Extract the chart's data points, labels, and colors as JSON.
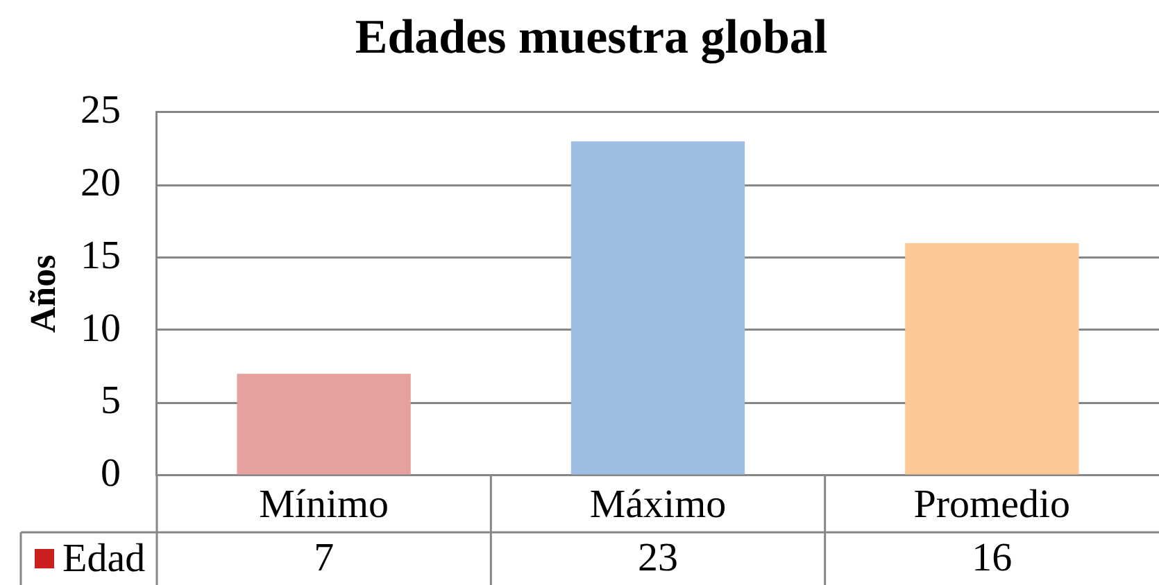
{
  "chart_data": {
    "type": "bar",
    "title": "Edades muestra global",
    "ylabel": "Años",
    "categories": [
      "Mínimo",
      "Máximo",
      "Promedio"
    ],
    "series": [
      {
        "name": "Edad",
        "color": "#cc1f1f",
        "colors": [
          "#e6a09e",
          "#9dbde3",
          "#fbc996"
        ],
        "values": [
          7,
          23,
          16
        ]
      }
    ],
    "ylim": [
      0,
      25
    ],
    "yticks": [
      0,
      5,
      10,
      15,
      20,
      25
    ],
    "grid": "y",
    "legend": "bottom left",
    "data_labels": true
  }
}
